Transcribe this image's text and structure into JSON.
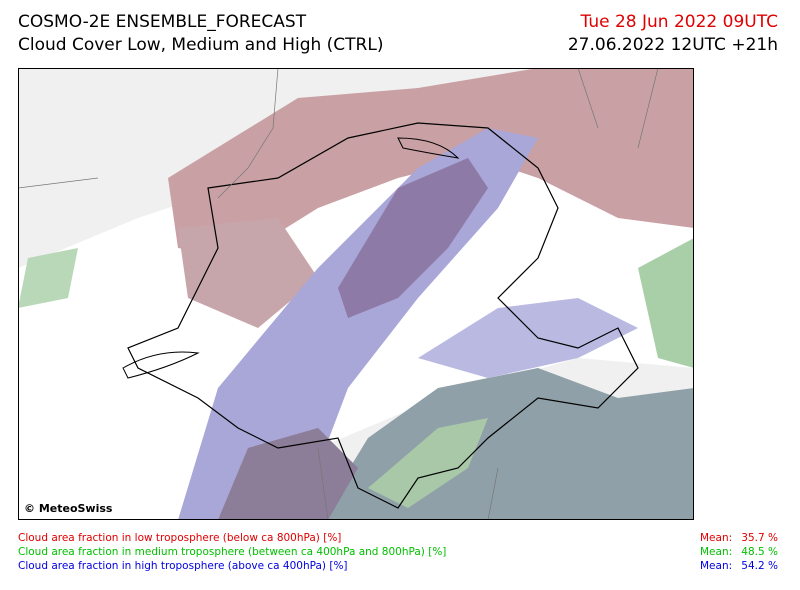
{
  "header": {
    "title": "COSMO-2E ENSEMBLE_FORECAST",
    "subtitle": "Cloud Cover Low, Medium and High (CTRL)",
    "valid_time": "Tue 28 Jun 2022 09UTC",
    "run_time": "27.06.2022 12UTC +21h"
  },
  "map": {
    "credit": "© MeteoSwiss"
  },
  "legend": [
    {
      "label": "Cloud area fraction in low troposphere (below ca 800hPa) [%]",
      "mean_label": "Mean:",
      "mean": "35.7 %",
      "color": "#e00000"
    },
    {
      "label": "Cloud area fraction in medium troposphere (between ca 400hPa and 800hPa) [%]",
      "mean_label": "Mean:",
      "mean": "48.5 %",
      "color": "#00c000"
    },
    {
      "label": "Cloud area fraction in high troposphere (above ca 400hPa) [%]",
      "mean_label": "Mean:",
      "mean": "54.2 %",
      "color": "#0000e0"
    }
  ]
}
